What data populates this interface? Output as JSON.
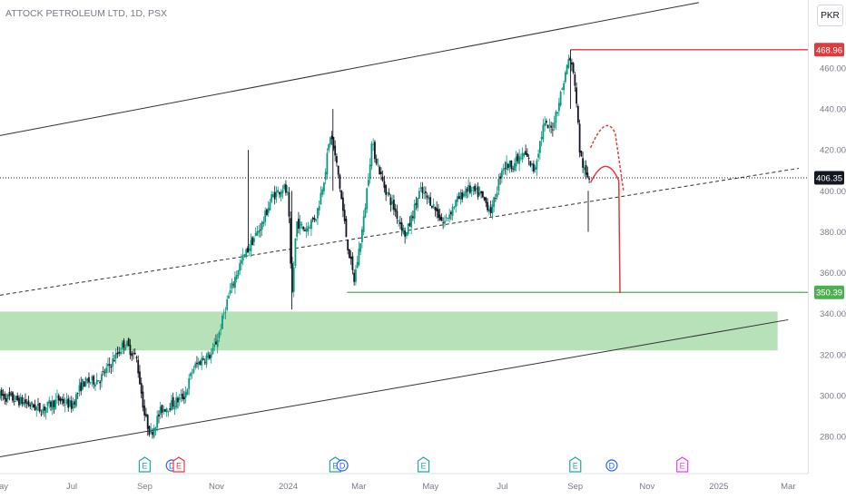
{
  "header": {
    "symbol_title": "ATTOCK PETROLEUM LTD, 1D, PSX",
    "currency_button": "PKR"
  },
  "colors": {
    "up_candle": "#089981",
    "down_candle": "#131722",
    "red_level": "#e03a3e",
    "green_level": "#4caf50",
    "demand_zone": "#b7e1b8",
    "channel_line": "#333333",
    "current_price_label": "#131722",
    "event_earnings": "#26a69a",
    "event_dividend": "#2962ff",
    "event_e_red": "#f23645",
    "event_e_purple": "#e040fb"
  },
  "chart_data": {
    "type": "candlestick",
    "title": "ATTOCK PETROLEUM LTD, 1D, PSX",
    "currency": "PKR",
    "y_axis": {
      "ylim": [
        270,
        480
      ],
      "ticks": [
        "280.00",
        "300.00",
        "320.00",
        "340.00",
        "360.00",
        "380.00",
        "400.00",
        "420.00",
        "440.00",
        "460.00"
      ],
      "tick_values": [
        280,
        300,
        320,
        340,
        360,
        380,
        400,
        420,
        440,
        460
      ]
    },
    "x_axis": {
      "ticks": [
        "May",
        "Jul",
        "Sep",
        "Nov",
        "2024",
        "Mar",
        "May",
        "Jul",
        "Sep",
        "Nov",
        "2025",
        "Mar"
      ],
      "tick_dates": [
        "2023-05-01",
        "2023-07-01",
        "2023-09-01",
        "2023-11-01",
        "2024-01-01",
        "2024-03-01",
        "2024-05-01",
        "2024-07-01",
        "2024-09-01",
        "2024-11-01",
        "2025-01-01",
        "2025-03-01"
      ],
      "range": [
        "2023-05-01",
        "2025-03-10"
      ]
    },
    "price_labels": [
      {
        "text": "468.96",
        "value": 468.96,
        "kind": "high"
      },
      {
        "text": "406.35",
        "value": 406.35,
        "kind": "current"
      },
      {
        "text": "350.39",
        "value": 350.39,
        "kind": "support"
      }
    ],
    "horizontal_levels": [
      {
        "value": 468.96,
        "from": "2024-08-28",
        "color": "red"
      },
      {
        "value": 350.39,
        "from": "2024-02-20",
        "color": "green"
      }
    ],
    "current_price_line": 406.35,
    "demand_zone": {
      "from": "2023-05-01",
      "to": "2025-02-20",
      "low": 322,
      "high": 341
    },
    "channel": {
      "upper": {
        "from": [
          "2023-05-01",
          427
        ],
        "to": [
          "2024-12-15",
          492
        ]
      },
      "lower": {
        "from": [
          "2023-05-01",
          270
        ],
        "to": [
          "2025-03-01",
          337
        ]
      },
      "middle_dashed": {
        "from": [
          "2023-05-01",
          349
        ],
        "to": [
          "2025-03-10",
          411
        ]
      }
    },
    "projections": [
      {
        "style": "solid",
        "points": [
          [
            "2024-09-14",
            404
          ],
          [
            "2024-09-27",
            415
          ],
          [
            "2024-10-08",
            405
          ],
          [
            "2024-10-09",
            350
          ]
        ]
      },
      {
        "style": "dashed",
        "points": [
          [
            "2024-09-14",
            421
          ],
          [
            "2024-09-27",
            434
          ],
          [
            "2024-10-05",
            428
          ],
          [
            "2024-10-12",
            400
          ]
        ]
      }
    ],
    "events": [
      {
        "label": "E",
        "kind": "earnings",
        "date": "2023-09-01"
      },
      {
        "label": "D",
        "kind": "dividend",
        "date": "2023-09-24"
      },
      {
        "label": "E",
        "kind": "earnings-red",
        "date": "2023-09-30"
      },
      {
        "label": "E",
        "kind": "earnings",
        "date": "2024-02-10"
      },
      {
        "label": "D",
        "kind": "dividend",
        "date": "2024-02-16"
      },
      {
        "label": "E",
        "kind": "earnings",
        "date": "2024-04-25"
      },
      {
        "label": "E",
        "kind": "earnings",
        "date": "2024-09-01"
      },
      {
        "label": "D",
        "kind": "dividend",
        "date": "2024-10-02"
      },
      {
        "label": "E",
        "kind": "earnings-purple",
        "date": "2024-12-01"
      }
    ],
    "price_path": [
      [
        "2023-05-01",
        300
      ],
      [
        "2023-05-20",
        297
      ],
      [
        "2023-06-05",
        293
      ],
      [
        "2023-06-20",
        298
      ],
      [
        "2023-07-01",
        295
      ],
      [
        "2023-07-10",
        306
      ],
      [
        "2023-07-25",
        308
      ],
      [
        "2023-08-05",
        317
      ],
      [
        "2023-08-15",
        326
      ],
      [
        "2023-08-25",
        318
      ],
      [
        "2023-09-01",
        290
      ],
      [
        "2023-09-06",
        281
      ],
      [
        "2023-09-15",
        293
      ],
      [
        "2023-09-25",
        296
      ],
      [
        "2023-10-05",
        300
      ],
      [
        "2023-10-12",
        313
      ],
      [
        "2023-10-20",
        318
      ],
      [
        "2023-10-28",
        320
      ],
      [
        "2023-11-03",
        330
      ],
      [
        "2023-11-10",
        346
      ],
      [
        "2023-11-20",
        363
      ],
      [
        "2023-11-30",
        374
      ],
      [
        "2023-12-10",
        384
      ],
      [
        "2023-12-18",
        397
      ],
      [
        "2023-12-28",
        402
      ],
      [
        "2024-01-01",
        397
      ],
      [
        "2024-01-04",
        346
      ],
      [
        "2024-01-08",
        385
      ],
      [
        "2024-01-15",
        381
      ],
      [
        "2024-01-25",
        388
      ],
      [
        "2024-02-01",
        408
      ],
      [
        "2024-02-06",
        428
      ],
      [
        "2024-02-12",
        410
      ],
      [
        "2024-02-20",
        375
      ],
      [
        "2024-02-26",
        356
      ],
      [
        "2024-03-05",
        385
      ],
      [
        "2024-03-12",
        423
      ],
      [
        "2024-03-22",
        403
      ],
      [
        "2024-04-01",
        390
      ],
      [
        "2024-04-10",
        378
      ],
      [
        "2024-04-22",
        400
      ],
      [
        "2024-05-01",
        395
      ],
      [
        "2024-05-12",
        384
      ],
      [
        "2024-05-22",
        394
      ],
      [
        "2024-06-01",
        401
      ],
      [
        "2024-06-12",
        398
      ],
      [
        "2024-06-22",
        390
      ],
      [
        "2024-07-01",
        412
      ],
      [
        "2024-07-10",
        413
      ],
      [
        "2024-07-20",
        418
      ],
      [
        "2024-07-28",
        410
      ],
      [
        "2024-08-05",
        432
      ],
      [
        "2024-08-12",
        430
      ],
      [
        "2024-08-20",
        448
      ],
      [
        "2024-08-27",
        466
      ],
      [
        "2024-09-01",
        452
      ],
      [
        "2024-09-05",
        418
      ],
      [
        "2024-09-10",
        407
      ],
      [
        "2024-09-14",
        406.35
      ]
    ]
  }
}
